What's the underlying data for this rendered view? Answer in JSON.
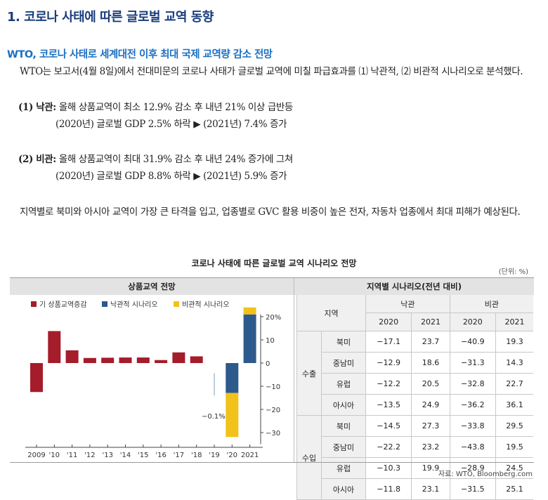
{
  "heading": "1. 코로나 사태에 따른 글로벌 교역 동향",
  "subheading": "WTO, 코로나 사태로 세계대전 이후 최대 국제 교역량 감소 전망",
  "para1": "WTO는 보고서(4월 8일)에서 전대미문의 코로나 사태가 글로벌 교역에 미칠 파급효과를 ⑴ 낙관적, ⑵ 비관적 시나리오로 분석했다.",
  "optimistic": {
    "label": "(1) 낙관:",
    "line1": "올해 상품교역이 최소 12.9% 감소 후 내년 21% 이상 급반등",
    "line2": "(2020년) 글로벌 GDP 2.5% 하락 ▶ (2021년) 7.4% 증가"
  },
  "pessimistic": {
    "label": "(2) 비관:",
    "line1": "올해 상품교역이 최대 31.9% 감소 후 내년 24% 증가에 그쳐",
    "line2": "(2020년) 글로벌 GDP 8.8% 하락 ▶ (2021년) 5.9% 증가"
  },
  "para2": "지역별로 북미와 아시아 교역이 가장 큰 타격을 입고, 업종별로 GVC 활용 비중이 높은 전자, 자동차 업종에서 최대 피해가 예상된다.",
  "figure_title": "코로나 사태에 따른 글로벌 교역 시나리오 전망",
  "unit": "(단위: %)",
  "left_panel_title": "상품교역 전망",
  "right_panel_title": "지역별 시나리오(전년 대비)",
  "source": "자료: WTO, Bloomberg.com",
  "colors": {
    "historical": "#a51c2b",
    "optimistic": "#2d5a8c",
    "pessimistic": "#f2c21b",
    "heading": "#1a3d7c",
    "subheading": "#1b6fc2"
  },
  "chart_data": {
    "type": "bar",
    "legend": [
      "기 상품교역증감",
      "낙관적 시나리오",
      "비관적 시나리오"
    ],
    "legend_placement": "top",
    "categories": [
      "2009",
      "'10",
      "'11",
      "'12",
      "'13",
      "'14",
      "'15",
      "'16",
      "'17",
      "'18",
      "'19",
      "'20",
      "2021"
    ],
    "historical": [
      -12.5,
      13.8,
      5.5,
      2.2,
      2.3,
      2.4,
      2.4,
      1.3,
      4.6,
      2.9,
      -0.1
    ],
    "optimistic_2020": -12.9,
    "pessimistic_2020": -31.9,
    "optimistic_2021": 21,
    "pessimistic_2021": 24,
    "annotation": "−0.1%",
    "yticks": [
      20,
      10,
      0,
      -10,
      -20,
      -30
    ],
    "ytick_labels": [
      "20%",
      "10",
      "0",
      "−10",
      "−20",
      "−30"
    ],
    "ylim": [
      -35,
      21
    ]
  },
  "table": {
    "region_header": "지역",
    "group_headers": [
      "낙관",
      "비관"
    ],
    "year_headers": [
      "2020",
      "2021",
      "2020",
      "2021"
    ],
    "groups": [
      {
        "name": "수출",
        "rows": [
          {
            "region": "북미",
            "values": [
              "−17.1",
              "23.7",
              "−40.9",
              "19.3"
            ]
          },
          {
            "region": "중남미",
            "values": [
              "−12.9",
              "18.6",
              "−31.3",
              "14.3"
            ]
          },
          {
            "region": "유럽",
            "values": [
              "−12.2",
              "20.5",
              "−32.8",
              "22.7"
            ]
          },
          {
            "region": "아시아",
            "values": [
              "−13.5",
              "24.9",
              "−36.2",
              "36.1"
            ]
          }
        ]
      },
      {
        "name": "수입",
        "rows": [
          {
            "region": "북미",
            "values": [
              "−14.5",
              "27.3",
              "−33.8",
              "29.5"
            ]
          },
          {
            "region": "중남미",
            "values": [
              "−22.2",
              "23.2",
              "−43.8",
              "19.5"
            ]
          },
          {
            "region": "유럽",
            "values": [
              "−10.3",
              "19.9",
              "−28.9",
              "24.5"
            ]
          },
          {
            "region": "아시아",
            "values": [
              "−11.8",
              "23.1",
              "−31.5",
              "25.1"
            ]
          }
        ]
      }
    ]
  }
}
